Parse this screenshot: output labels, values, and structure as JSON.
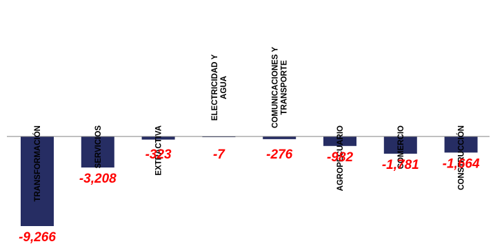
{
  "chart_data": {
    "type": "bar",
    "title": "",
    "xlabel": "",
    "ylabel": "",
    "categories": [
      [
        "TRANSFORMACIÓN"
      ],
      [
        "SERVICIOS"
      ],
      [
        "EXTRACTIVA"
      ],
      [
        "ELECTRICIDAD Y",
        "AGUA"
      ],
      [
        "COMUNICACIONES Y",
        "TRANSPORTE"
      ],
      [
        "AGROPECUARIO"
      ],
      [
        "COMERCIO"
      ],
      [
        "CONSTRUCCIÓN"
      ]
    ],
    "values": [
      -9266,
      -3208,
      -323,
      -7,
      -276,
      -982,
      -1781,
      -1664
    ],
    "value_labels": [
      "-9,266",
      "-3,208",
      "-323",
      "-7",
      "-276",
      "-982",
      "-1,781",
      "-1,664"
    ],
    "ylim": [
      -9266,
      0
    ],
    "grid": false,
    "legend": "none",
    "colors": {
      "bar": "#262d63",
      "value_label": "#ff0000",
      "axis": "#808080",
      "category_label": "#000000"
    }
  }
}
